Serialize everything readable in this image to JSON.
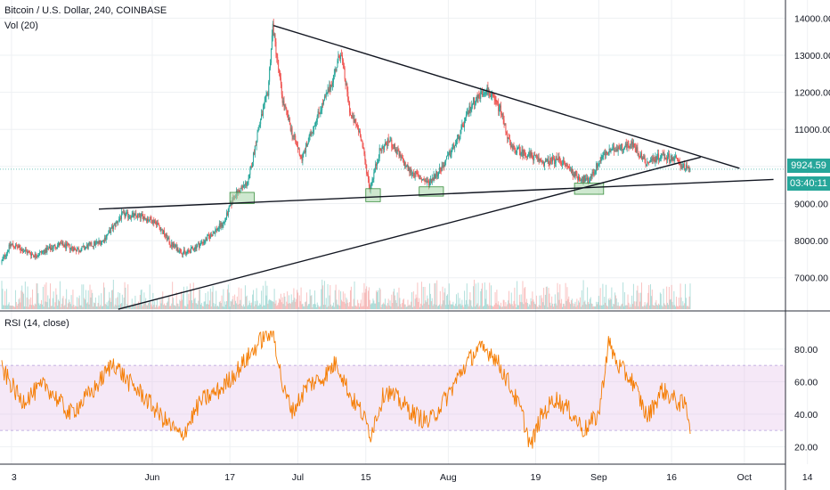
{
  "window_title": "Bitcoin / U.S. Dollar, 240, COINBASE",
  "volume_label": "Vol (20)",
  "rsi_label": "RSI (14, close)",
  "current_price_label": "9924.59",
  "countdown_label": "03:40:11",
  "colors": {
    "up": "#26a69a",
    "down": "#ef5350",
    "rsi_line": "#f57c00",
    "rsi_band": "#e1bee7",
    "trendline": "#131722",
    "zone_fill": "#a5d6a7",
    "zone_stroke": "#388e3c"
  },
  "chart_data": [
    {
      "type": "candlestick",
      "title": "Bitcoin / U.S. Dollar, 240, COINBASE",
      "x_ticks": [
        "3",
        "Jun",
        "17",
        "Jul",
        "15",
        "Aug",
        "19",
        "Sep",
        "16",
        "Oct",
        "14"
      ],
      "y_ticks": [
        "14000.00",
        "13000.00",
        "12000.00",
        "11000.00",
        "10000.00",
        "9000.00",
        "8000.00",
        "7000.00"
      ],
      "ylim": [
        6200,
        14200
      ],
      "y_tick_values": [
        14000,
        13000,
        12000,
        11000,
        10000,
        9000,
        8000,
        7000
      ],
      "days_axis_labels": [
        "May 3",
        "Jun 1",
        "Jun 17",
        "Jul 1",
        "Jul 15",
        "Aug 1",
        "Aug 19",
        "Sep 1",
        "Sep 16",
        "Oct 1",
        "Oct 14"
      ],
      "price_path": [
        [
          "May 1",
          7400
        ],
        [
          "May 3",
          7900
        ],
        [
          "May 8",
          7600
        ],
        [
          "May 13",
          7900
        ],
        [
          "May 17",
          7750
        ],
        [
          "May 22",
          8000
        ],
        [
          "May 26",
          8700
        ],
        [
          "May 30",
          8650
        ],
        [
          "Jun 2",
          8500
        ],
        [
          "Jun 5",
          7900
        ],
        [
          "Jun 8",
          7650
        ],
        [
          "Jun 12",
          8000
        ],
        [
          "Jun 16",
          8500
        ],
        [
          "Jun 18",
          9200
        ],
        [
          "Jun 21",
          9600
        ],
        [
          "Jun 23",
          11000
        ],
        [
          "Jun 25",
          12000
        ],
        [
          "Jun 26",
          13800
        ],
        [
          "Jun 28",
          11800
        ],
        [
          "Jun 30",
          10900
        ],
        [
          "Jul 2",
          10200
        ],
        [
          "Jul 5",
          11300
        ],
        [
          "Jul 8",
          12200
        ],
        [
          "Jul 10",
          13100
        ],
        [
          "Jul 12",
          11400
        ],
        [
          "Jul 14",
          10900
        ],
        [
          "Jul 16",
          9400
        ],
        [
          "Jul 18",
          10400
        ],
        [
          "Jul 20",
          10700
        ],
        [
          "Jul 24",
          9900
        ],
        [
          "Jul 28",
          9550
        ],
        [
          "Jul 31",
          10000
        ],
        [
          "Aug 3",
          10700
        ],
        [
          "Aug 6",
          11700
        ],
        [
          "Aug 9",
          12100
        ],
        [
          "Aug 12",
          11500
        ],
        [
          "Aug 14",
          10500
        ],
        [
          "Aug 18",
          10300
        ],
        [
          "Aug 21",
          10100
        ],
        [
          "Aug 24",
          10200
        ],
        [
          "Aug 28",
          9700
        ],
        [
          "Aug 30",
          9600
        ],
        [
          "Sep 2",
          10300
        ],
        [
          "Sep 5",
          10500
        ],
        [
          "Sep 8",
          10600
        ],
        [
          "Sep 11",
          10100
        ],
        [
          "Sep 14",
          10300
        ],
        [
          "Sep 17",
          10200
        ],
        [
          "Sep 19",
          9950
        ],
        [
          "Sep 20",
          9924.59
        ]
      ],
      "trendlines": [
        {
          "from": [
            "Jun 26",
            13800
          ],
          "to": [
            "Sep 30",
            9950
          ]
        },
        {
          "from": [
            "May 21",
            8850
          ],
          "to": [
            "Oct 7",
            9650
          ]
        },
        {
          "from": [
            "May 25",
            6150
          ],
          "to": [
            "Sep 22",
            10250
          ]
        }
      ],
      "support_zones": [
        {
          "from": [
            "Jun 17",
            9000
          ],
          "to": [
            "Jun 22",
            9300
          ]
        },
        {
          "from": [
            "Jul 15",
            9050
          ],
          "to": [
            "Jul 18",
            9400
          ]
        },
        {
          "from": [
            "Jul 26",
            9200
          ],
          "to": [
            "Jul 31",
            9450
          ]
        },
        {
          "from": [
            "Aug 27",
            9250
          ],
          "to": [
            "Sep 2",
            9550
          ]
        }
      ],
      "current_price": 9924.59
    },
    {
      "type": "line",
      "title": "RSI (14, close)",
      "y_ticks": [
        "80.00",
        "60.00",
        "40.00",
        "20.00"
      ],
      "y_tick_values": [
        80,
        60,
        40,
        20
      ],
      "ylim": [
        12,
        92
      ],
      "band": [
        30,
        70
      ],
      "rsi_path": [
        [
          "May 1",
          68
        ],
        [
          "May 5",
          48
        ],
        [
          "May 10",
          58
        ],
        [
          "May 15",
          40
        ],
        [
          "May 20",
          55
        ],
        [
          "May 24",
          72
        ],
        [
          "May 27",
          60
        ],
        [
          "May 30",
          52
        ],
        [
          "Jun 3",
          38
        ],
        [
          "Jun 7",
          26
        ],
        [
          "Jun 11",
          48
        ],
        [
          "Jun 15",
          55
        ],
        [
          "Jun 18",
          65
        ],
        [
          "Jun 21",
          76
        ],
        [
          "Jun 24",
          88
        ],
        [
          "Jun 26",
          90
        ],
        [
          "Jun 28",
          55
        ],
        [
          "Jun 30",
          42
        ],
        [
          "Jul 3",
          58
        ],
        [
          "Jul 6",
          62
        ],
        [
          "Jul 9",
          72
        ],
        [
          "Jul 12",
          50
        ],
        [
          "Jul 14",
          42
        ],
        [
          "Jul 16",
          28
        ],
        [
          "Jul 19",
          55
        ],
        [
          "Jul 22",
          48
        ],
        [
          "Jul 25",
          40
        ],
        [
          "Jul 28",
          35
        ],
        [
          "Aug 1",
          52
        ],
        [
          "Aug 4",
          68
        ],
        [
          "Aug 7",
          80
        ],
        [
          "Aug 10",
          78
        ],
        [
          "Aug 13",
          62
        ],
        [
          "Aug 16",
          42
        ],
        [
          "Aug 18",
          20
        ],
        [
          "Aug 20",
          38
        ],
        [
          "Aug 23",
          50
        ],
        [
          "Aug 26",
          42
        ],
        [
          "Aug 29",
          30
        ],
        [
          "Sep 1",
          40
        ],
        [
          "Sep 3",
          84
        ],
        [
          "Sep 5",
          70
        ],
        [
          "Sep 8",
          60
        ],
        [
          "Sep 11",
          38
        ],
        [
          "Sep 14",
          55
        ],
        [
          "Sep 17",
          48
        ],
        [
          "Sep 19",
          45
        ],
        [
          "Sep 20",
          31
        ]
      ]
    }
  ]
}
